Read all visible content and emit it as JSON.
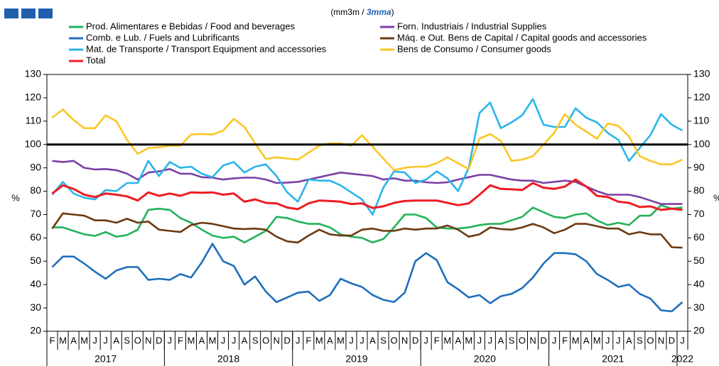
{
  "chart_data": {
    "type": "line",
    "subtitle": [
      "(mm3m / ",
      "3mma",
      ")"
    ],
    "y_label": "%",
    "categories": [
      "F",
      "M",
      "A",
      "M",
      "J",
      "J",
      "A",
      "S",
      "O",
      "N",
      "D",
      "J",
      "F",
      "M",
      "A",
      "M",
      "J",
      "J",
      "A",
      "S",
      "O",
      "N",
      "D",
      "J",
      "F",
      "M",
      "A",
      "M",
      "J",
      "J",
      "A",
      "S",
      "O",
      "N",
      "D",
      "J",
      "F",
      "M",
      "A",
      "M",
      "J",
      "J",
      "A",
      "S",
      "O",
      "N",
      "D",
      "J",
      "F",
      "M",
      "A",
      "M",
      "J",
      "J",
      "A",
      "S",
      "O",
      "N",
      "D",
      "J"
    ],
    "years": [
      "2017",
      "2018",
      "2019",
      "2020",
      "2021",
      "2022"
    ],
    "ylim": [
      20,
      130
    ],
    "yticks": [
      20,
      30,
      40,
      50,
      60,
      70,
      80,
      90,
      100,
      110,
      120,
      130
    ],
    "reference_line": 100,
    "series": [
      {
        "name": "Prod. Alimentares e Bebidas / Food and beverages",
        "color": "#22b25a",
        "values": [
          64.5,
          64.5,
          63,
          61.5,
          60.8,
          62.5,
          60.5,
          61.2,
          63.5,
          72,
          72.5,
          72,
          68.5,
          66.5,
          63.5,
          61,
          60,
          60.5,
          58,
          60.5,
          63,
          69,
          68.5,
          67,
          66,
          66,
          64.5,
          61.5,
          60.5,
          60,
          58,
          59.5,
          64.5,
          70,
          70,
          68.5,
          64.5,
          64,
          64,
          64.5,
          65.5,
          66,
          66,
          67.5,
          69,
          73,
          71,
          69,
          68.5,
          70,
          70.5,
          67.5,
          65.5,
          66.5,
          65.5,
          69.5,
          69.5,
          74,
          72.5,
          73
        ]
      },
      {
        "name": "Forn. Industriais / Industrial Supplies",
        "color": "#7b3fa6",
        "values": [
          93,
          92.5,
          93,
          90,
          89.3,
          89.5,
          89,
          87.5,
          85,
          88,
          88.5,
          89.5,
          87.5,
          87.5,
          86,
          85.8,
          85,
          85.5,
          85.8,
          85.8,
          85,
          83.5,
          83.7,
          84,
          85,
          86,
          87,
          88,
          87.5,
          87,
          86.5,
          85,
          85.5,
          84.5,
          84.5,
          83.8,
          83.5,
          83.8,
          85,
          86,
          87,
          87,
          86,
          85,
          84.5,
          84.5,
          83.5,
          84,
          84.5,
          84,
          82,
          80,
          78.5,
          78.5,
          78.5,
          77.5,
          76,
          74.5,
          74.5,
          74.5
        ]
      },
      {
        "name": "Comb. e Lub. /  Fuels and Lubrificants",
        "color": "#1f6fbd",
        "values": [
          47.5,
          52,
          52,
          49,
          45.5,
          42.5,
          46,
          47.5,
          47.5,
          42,
          42.5,
          42,
          44.5,
          43,
          49.5,
          57.5,
          50,
          48,
          40,
          43.5,
          37,
          32.5,
          34.5,
          36.5,
          37,
          33,
          35.5,
          42.5,
          40.5,
          39,
          35.5,
          33.5,
          32.5,
          36.5,
          50,
          53.5,
          50.5,
          41,
          38,
          34.5,
          35.5,
          32,
          35,
          36,
          38.5,
          43,
          49,
          53.5,
          53.5,
          53,
          50,
          44.5,
          42,
          39,
          40,
          36,
          34,
          29,
          28.5,
          32.5
        ]
      },
      {
        "name": "Máq. e Out. Bens de Capital / Capital goods and accessories",
        "color": "#6b3a12",
        "values": [
          64,
          70.5,
          70,
          69.5,
          67.5,
          67.5,
          66.5,
          68.2,
          66.5,
          67,
          63.5,
          63,
          62.5,
          65.5,
          66.5,
          66,
          65,
          64,
          63.8,
          64,
          63.5,
          60.5,
          58.5,
          58,
          61,
          63.5,
          61.5,
          61,
          61,
          63.5,
          64,
          63,
          63,
          64,
          63.5,
          64,
          64,
          65.3,
          63.5,
          60.5,
          61.5,
          64.5,
          63.8,
          63.5,
          64.5,
          66,
          64.5,
          62,
          63.5,
          66,
          66,
          65,
          64,
          64,
          61.5,
          62.5,
          61.5,
          61.5,
          56,
          55.8
        ]
      },
      {
        "name": "Mat. de Transporte / Transport Equipment and accessories",
        "color": "#29b5ea",
        "values": [
          78.5,
          84,
          79,
          77.2,
          76.5,
          80.5,
          80,
          83.5,
          83.5,
          93,
          86.5,
          92.5,
          90,
          90.5,
          87.5,
          86,
          91,
          92.5,
          88,
          90.5,
          91.5,
          86.5,
          79.5,
          75.5,
          85,
          84.5,
          84.5,
          82.5,
          79.5,
          76.5,
          70,
          81.5,
          88.5,
          88,
          83.5,
          85,
          88.5,
          85.5,
          80,
          90,
          113.5,
          118,
          107,
          109.5,
          112.5,
          119.5,
          108.5,
          107.5,
          107.5,
          115.5,
          111.5,
          109.5,
          105,
          102,
          93,
          98.5,
          104,
          113,
          108.5,
          106
        ]
      },
      {
        "name": "Bens de Consumo / Consumer goods",
        "color": "#fcc624",
        "values": [
          111.5,
          115,
          110.5,
          107,
          107,
          112.5,
          110,
          102,
          96,
          98.5,
          98.8,
          99.5,
          99.5,
          104.3,
          104.5,
          104.3,
          106,
          111,
          107.5,
          100.5,
          93.8,
          94.5,
          94,
          93.5,
          96.5,
          99.5,
          100.5,
          100.5,
          99.5,
          104,
          99,
          94,
          89,
          90,
          90.5,
          90.5,
          92,
          94.5,
          92,
          89.5,
          102.5,
          104.5,
          101.5,
          93,
          93.5,
          95,
          100,
          105,
          113,
          108.5,
          105.5,
          102.5,
          109,
          108,
          103.5,
          95,
          93,
          91.5,
          91.5,
          93.5
        ]
      },
      {
        "name": "Total",
        "color": "#ee1c24",
        "values": [
          79,
          82.5,
          81,
          78.5,
          77.5,
          79,
          78.5,
          77.8,
          76,
          79.5,
          78,
          79,
          78,
          79.5,
          79.3,
          79.5,
          78.5,
          79,
          75.5,
          76.5,
          75,
          74.8,
          73,
          72.3,
          74.8,
          76,
          75.8,
          75.5,
          74.5,
          74.8,
          72.8,
          73.5,
          75,
          75.8,
          76,
          76,
          76,
          75,
          74,
          74.8,
          78.5,
          82.5,
          81,
          80.8,
          80.5,
          83.5,
          81.5,
          81,
          82,
          85,
          82,
          78,
          77.5,
          75.5,
          75,
          73.2,
          73.5,
          72,
          72.5,
          72
        ]
      }
    ]
  }
}
